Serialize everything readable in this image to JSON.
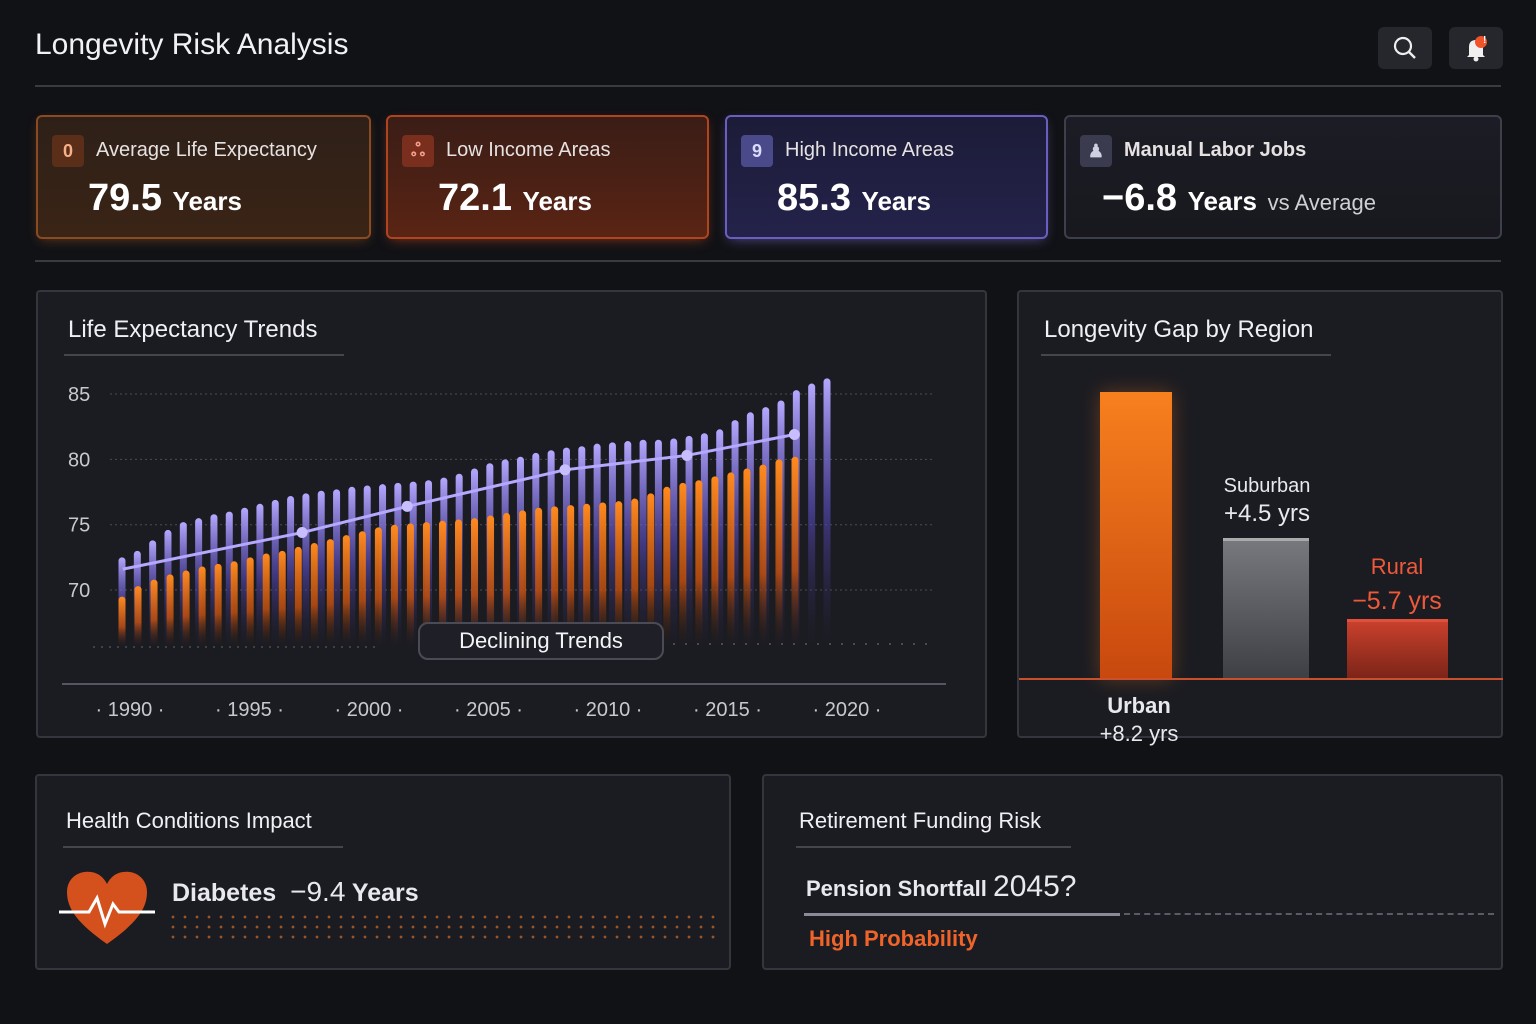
{
  "header": {
    "title": "Longevity Risk Analysis",
    "search_icon": "search-icon",
    "bell_icon": "bell-icon",
    "notification_badge": "!"
  },
  "cards": [
    {
      "label": "Average Life Expectancy",
      "value": "79.5",
      "unit": "Years",
      "icon": "alert-icon",
      "icon_glyph": "0",
      "accent": "#f07a24"
    },
    {
      "label": "Low Income Areas",
      "value": "72.1",
      "unit": "Years",
      "icon": "people-icon",
      "icon_glyph": "ஃ",
      "accent": "#f0541e"
    },
    {
      "label": "High Income Areas",
      "value": "85.3",
      "unit": "Years",
      "icon": "nine-icon",
      "icon_glyph": "9",
      "accent": "#8f7ef0"
    },
    {
      "label": "Manual Labor Jobs",
      "value": "−6.8",
      "unit": "Years",
      "suffix": "vs Average",
      "icon": "worker-icon",
      "icon_glyph": "♟",
      "accent": "#6e6f8a"
    }
  ],
  "trends": {
    "title": "Life Expectancy Trends",
    "annotation": "Declining Trends",
    "chart_data": {
      "type": "bar",
      "yticks": [
        85,
        80,
        75,
        70
      ],
      "xticks": [
        "1990",
        "1995",
        "2000",
        "2005",
        "2010",
        "2015",
        "2020"
      ],
      "ylim": [
        65.6,
        87
      ],
      "grid": true,
      "series": [
        {
          "color": "#8b7cf0",
          "values": [
            72.5,
            73,
            73.8,
            74.6,
            75.2,
            75.5,
            75.8,
            76,
            76.3,
            76.6,
            76.9,
            77.2,
            77.4,
            77.6,
            77.7,
            77.9,
            78,
            78.1,
            78.2,
            78.3,
            78.4,
            78.6,
            78.9,
            79.3,
            79.7,
            80,
            80.2,
            80.5,
            80.7,
            80.9,
            81,
            81.2,
            81.3,
            81.4,
            81.5,
            81.5,
            81.6,
            81.8,
            82,
            82.3,
            83,
            83.6,
            84,
            84.5,
            85.3,
            85.8,
            86.2
          ]
        },
        {
          "color": "#f5781a",
          "values": [
            69.5,
            70.3,
            70.8,
            71.2,
            71.5,
            71.8,
            72,
            72.2,
            72.5,
            72.8,
            73,
            73.3,
            73.6,
            73.9,
            74.2,
            74.5,
            74.8,
            75,
            75.1,
            75.2,
            75.3,
            75.4,
            75.5,
            75.7,
            75.9,
            76.1,
            76.3,
            76.4,
            76.5,
            76.6,
            76.7,
            76.8,
            77,
            77.4,
            77.9,
            78.2,
            78.4,
            78.7,
            79,
            79.3,
            79.6,
            80,
            80.2
          ]
        }
      ],
      "line": {
        "color": "#b4a8ff",
        "points": [
          [
            1989.7,
            71.6
          ],
          [
            1997.2,
            74.4
          ],
          [
            2001.6,
            76.4
          ],
          [
            2008.2,
            79.2
          ],
          [
            2013.3,
            80.3
          ],
          [
            2017.8,
            81.9
          ]
        ]
      }
    }
  },
  "regions": {
    "title": "Longevity Gap by Region",
    "chart_data": {
      "type": "bar",
      "categories": [
        "Urban",
        "Suburban",
        "Rural"
      ],
      "values": [
        "+8.2 yrs",
        "+4.5 yrs",
        "−5.7 yrs"
      ],
      "colors": [
        "#f5761c",
        "#6a6b72",
        "#c9402c"
      ]
    }
  },
  "health": {
    "title": "Health Conditions Impact",
    "condition": "Diabetes",
    "value": "−9.4",
    "unit": "Years",
    "icon": "heart-pulse-icon"
  },
  "retirement": {
    "title": "Retirement Funding Risk",
    "label": "Pension Shortfall",
    "year": "2045?",
    "risk": "High Probability",
    "risk_color": "#f0642a"
  }
}
